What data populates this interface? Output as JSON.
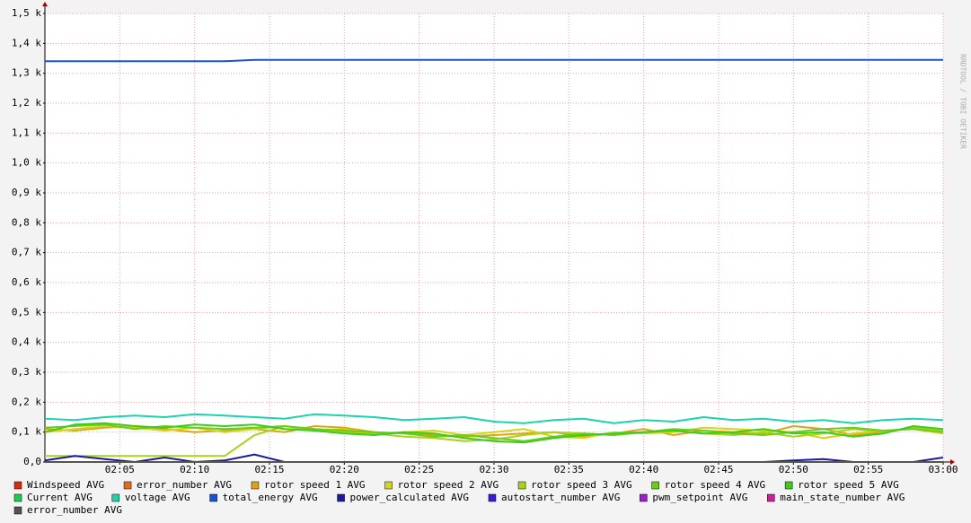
{
  "chart_data": {
    "type": "line",
    "credit": "RRDTOOL / TOBI OETIKER",
    "x": [
      "02:00",
      "02:02",
      "02:04",
      "02:06",
      "02:08",
      "02:10",
      "02:12",
      "02:14",
      "02:16",
      "02:18",
      "02:20",
      "02:22",
      "02:24",
      "02:26",
      "02:28",
      "02:30",
      "02:32",
      "02:34",
      "02:36",
      "02:38",
      "02:40",
      "02:42",
      "02:44",
      "02:46",
      "02:48",
      "02:50",
      "02:52",
      "02:54",
      "02:56",
      "02:58",
      "03:00"
    ],
    "xlim": [
      "02:00",
      "03:00"
    ],
    "xticks": [
      "02:05",
      "02:10",
      "02:15",
      "02:20",
      "02:25",
      "02:30",
      "02:35",
      "02:40",
      "02:45",
      "02:50",
      "02:55",
      "03:00"
    ],
    "ylim": [
      0,
      1500
    ],
    "yticks": [
      {
        "value": 0,
        "label": "0,0"
      },
      {
        "value": 100,
        "label": "0,1 k"
      },
      {
        "value": 200,
        "label": "0,2 k"
      },
      {
        "value": 300,
        "label": "0,3 k"
      },
      {
        "value": 400,
        "label": "0,4 k"
      },
      {
        "value": 500,
        "label": "0,5 k"
      },
      {
        "value": 600,
        "label": "0,6 k"
      },
      {
        "value": 700,
        "label": "0,7 k"
      },
      {
        "value": 800,
        "label": "0,8 k"
      },
      {
        "value": 900,
        "label": "0,9 k"
      },
      {
        "value": 1000,
        "label": "1,0 k"
      },
      {
        "value": 1100,
        "label": "1,1 k"
      },
      {
        "value": 1200,
        "label": "1,2 k"
      },
      {
        "value": 1300,
        "label": "1,3 k"
      },
      {
        "value": 1400,
        "label": "1,4 k"
      },
      {
        "value": 1500,
        "label": "1,5 k"
      }
    ],
    "grid": true,
    "series": [
      {
        "name": "Windspeed AVG",
        "color": "#d62d0e",
        "values": [
          0,
          0,
          0,
          0,
          0,
          0,
          0,
          0,
          0,
          0,
          0,
          0,
          0,
          0,
          0,
          0,
          0,
          0,
          0,
          0,
          0,
          0,
          0,
          0,
          0,
          0,
          0,
          0,
          0,
          0,
          0
        ]
      },
      {
        "name": "error_number AVG",
        "color": "#e06c1a",
        "values": [
          0,
          0,
          0,
          0,
          0,
          0,
          0,
          0,
          0,
          0,
          0,
          0,
          0,
          0,
          0,
          0,
          0,
          0,
          0,
          0,
          0,
          0,
          0,
          0,
          0,
          0,
          0,
          0,
          0,
          0,
          0
        ]
      },
      {
        "name": "rotor speed 1 AVG",
        "color": "#e0a317",
        "values": [
          110,
          105,
          115,
          120,
          110,
          100,
          105,
          110,
          100,
          120,
          115,
          100,
          95,
          90,
          85,
          90,
          95,
          100,
          85,
          95,
          110,
          90,
          105,
          100,
          95,
          120,
          110,
          90,
          100,
          115,
          100
        ]
      },
      {
        "name": "rotor speed 2 AVG",
        "color": "#d4d41a",
        "values": [
          100,
          110,
          120,
          115,
          105,
          115,
          100,
          110,
          120,
          105,
          110,
          95,
          100,
          105,
          90,
          100,
          110,
          85,
          80,
          100,
          95,
          100,
          115,
          110,
          105,
          100,
          80,
          95,
          105,
          110,
          95
        ]
      },
      {
        "name": "rotor speed 3 AVG",
        "color": "#a7d41a",
        "values": [
          20,
          20,
          20,
          20,
          20,
          20,
          20,
          90,
          120,
          110,
          100,
          95,
          85,
          80,
          70,
          75,
          90,
          100,
          95,
          90,
          100,
          105,
          95,
          90,
          100,
          85,
          95,
          110,
          100,
          115,
          105
        ]
      },
      {
        "name": "rotor speed 4 AVG",
        "color": "#6ccc1a",
        "values": [
          115,
          120,
          125,
          110,
          120,
          115,
          110,
          115,
          120,
          110,
          105,
          100,
          95,
          85,
          90,
          80,
          70,
          85,
          95,
          90,
          100,
          110,
          105,
          95,
          90,
          100,
          110,
          115,
          105,
          110,
          100
        ]
      },
      {
        "name": "rotor speed 5 AVG",
        "color": "#3ccc1a",
        "values": [
          100,
          125,
          130,
          120,
          115,
          125,
          120,
          125,
          110,
          105,
          95,
          90,
          100,
          95,
          80,
          70,
          65,
          80,
          90,
          95,
          100,
          105,
          95,
          100,
          110,
          95,
          100,
          85,
          95,
          120,
          110
        ]
      },
      {
        "name": "Current AVG",
        "color": "#1acc50",
        "values": [
          0,
          0,
          0,
          0,
          0,
          0,
          0,
          0,
          0,
          0,
          0,
          0,
          0,
          0,
          0,
          0,
          0,
          0,
          0,
          0,
          0,
          0,
          0,
          0,
          0,
          0,
          0,
          0,
          0,
          0,
          0
        ]
      },
      {
        "name": "voltage AVG",
        "color": "#1ad4aa",
        "values": [
          145,
          140,
          150,
          155,
          150,
          160,
          155,
          150,
          145,
          160,
          155,
          150,
          140,
          145,
          150,
          135,
          130,
          140,
          145,
          130,
          140,
          135,
          150,
          140,
          145,
          135,
          140,
          130,
          140,
          145,
          140
        ]
      },
      {
        "name": "total_energy AVG",
        "color": "#1a50d4",
        "values": [
          1340,
          1340,
          1340,
          1340,
          1340,
          1340,
          1340,
          1345,
          1345,
          1345,
          1345,
          1345,
          1345,
          1345,
          1345,
          1345,
          1345,
          1345,
          1345,
          1345,
          1345,
          1345,
          1345,
          1345,
          1345,
          1345,
          1345,
          1345,
          1345,
          1345,
          1345
        ]
      },
      {
        "name": "power_calculated AVG",
        "color": "#1a1a9e",
        "values": [
          5,
          20,
          10,
          0,
          15,
          0,
          5,
          25,
          0,
          0,
          0,
          0,
          0,
          0,
          0,
          0,
          0,
          0,
          0,
          0,
          0,
          0,
          0,
          0,
          0,
          5,
          10,
          0,
          0,
          0,
          15
        ]
      },
      {
        "name": "autostart_number AVG",
        "color": "#3a1ad4",
        "values": [
          0,
          0,
          0,
          0,
          0,
          0,
          0,
          0,
          0,
          0,
          0,
          0,
          0,
          0,
          0,
          0,
          0,
          0,
          0,
          0,
          0,
          0,
          0,
          0,
          0,
          0,
          0,
          0,
          0,
          0,
          0
        ]
      },
      {
        "name": "pwm_setpoint AVG",
        "color": "#a01ad4",
        "values": [
          0,
          0,
          0,
          0,
          0,
          0,
          0,
          0,
          0,
          0,
          0,
          0,
          0,
          0,
          0,
          0,
          0,
          0,
          0,
          0,
          0,
          0,
          0,
          0,
          0,
          0,
          0,
          0,
          0,
          0,
          0
        ]
      },
      {
        "name": "main_state_number AVG",
        "color": "#d41a9e",
        "values": [
          0,
          0,
          0,
          0,
          0,
          0,
          0,
          0,
          0,
          0,
          0,
          0,
          0,
          0,
          0,
          0,
          0,
          0,
          0,
          0,
          0,
          0,
          0,
          0,
          0,
          0,
          0,
          0,
          0,
          0,
          0
        ]
      },
      {
        "name": "error_number AVG",
        "color": "#555555",
        "values": [
          0,
          0,
          0,
          0,
          0,
          0,
          0,
          0,
          0,
          0,
          0,
          0,
          0,
          0,
          0,
          0,
          0,
          0,
          0,
          0,
          0,
          0,
          0,
          0,
          0,
          0,
          0,
          0,
          0,
          0,
          0
        ]
      }
    ]
  }
}
